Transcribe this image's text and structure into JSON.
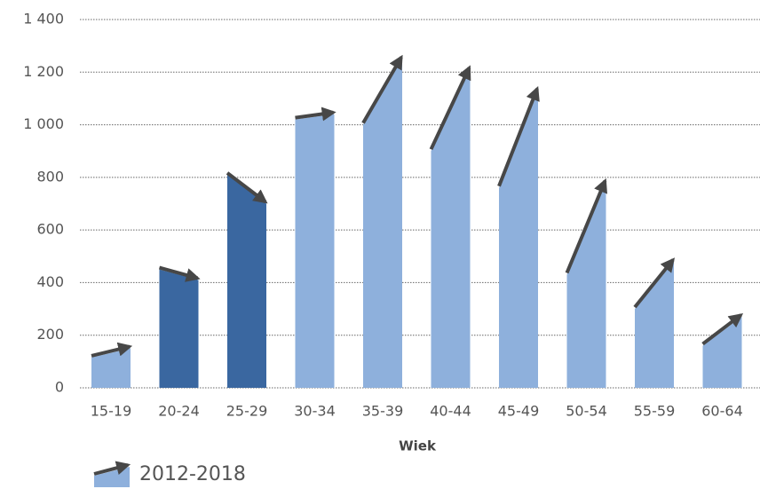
{
  "chart_data": {
    "type": "slope-bar",
    "x_label": "Wiek",
    "categories": [
      "15-19",
      "20-24",
      "25-29",
      "30-34",
      "35-39",
      "40-44",
      "45-49",
      "50-54",
      "55-59",
      "60-64"
    ],
    "series": [
      {
        "name": "2012-2018",
        "start": [
          115,
          450,
          810,
          1020,
          1000,
          900,
          760,
          430,
          300,
          160
        ],
        "end": [
          150,
          410,
          700,
          1040,
          1250,
          1210,
          1130,
          780,
          480,
          270
        ],
        "color": "#8eb0dc",
        "decrease_color": "#3a67a0",
        "arrow_color": "#474747"
      }
    ],
    "ylim": [
      0,
      1400
    ],
    "yticks": [
      0,
      200,
      400,
      600,
      800,
      {
        "value": 1000,
        "label": "1 000"
      },
      {
        "value": 1200,
        "label": "1 200"
      },
      {
        "value": 1400,
        "label": "1 400"
      }
    ],
    "grid": true,
    "legend": "bottom-left"
  }
}
